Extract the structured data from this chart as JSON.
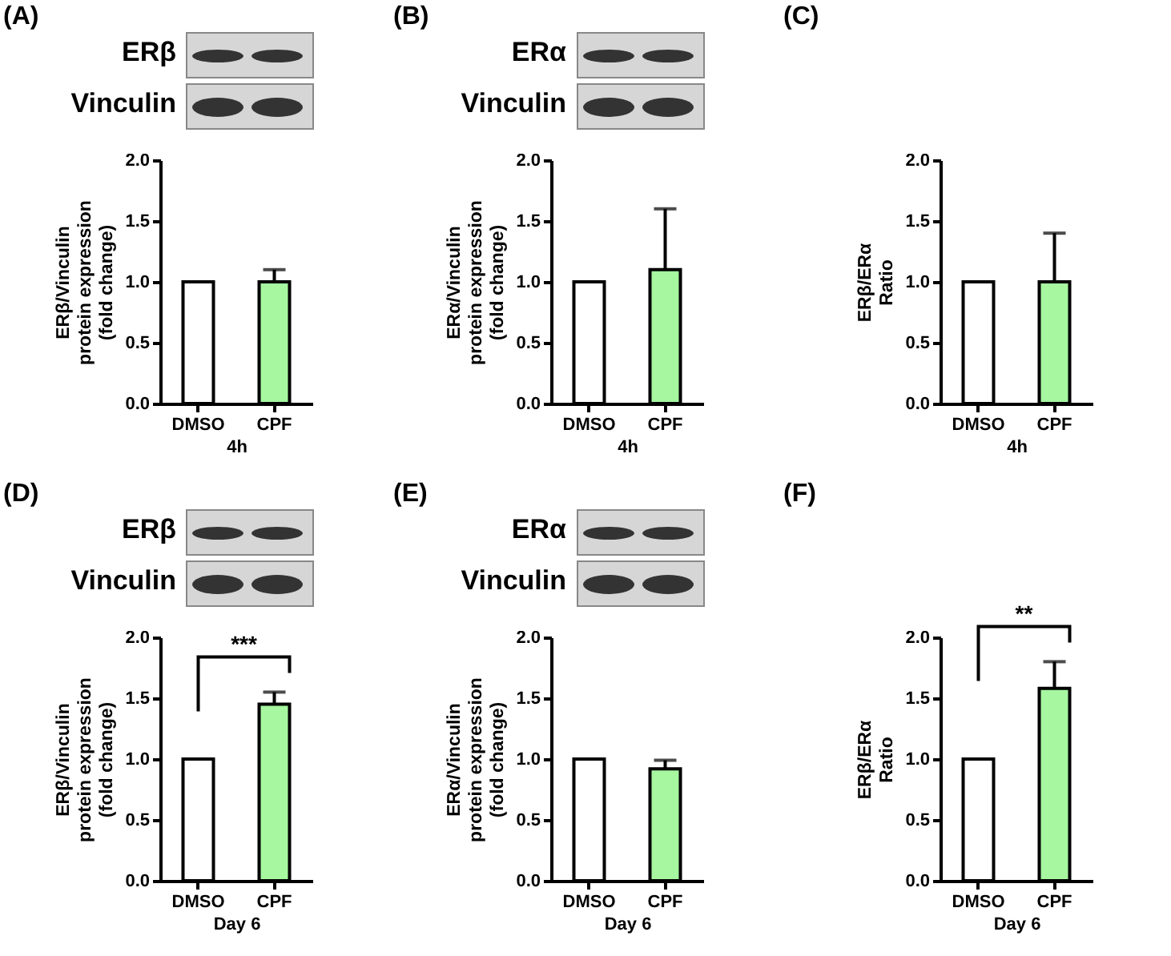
{
  "chart_data": [
    {
      "type": "bar",
      "title": "(A)",
      "annotations": [
        "ERβ",
        "Vinculin"
      ],
      "ylabel": "ERβ/Vinculin\nprotein expression\n(fold change)",
      "xlabel": "4h",
      "categories": [
        "DMSO",
        "CPF"
      ],
      "values": [
        1.0,
        1.0
      ],
      "colors": [
        "#ffffff",
        "#a6f7a0"
      ],
      "errors": [
        null,
        [
          1.0,
          1.1
        ]
      ],
      "ylim": [
        0,
        2
      ],
      "yticks": [
        {
          "value": 0,
          "label": "0.0"
        },
        {
          "value": 0.5,
          "label": "0.5"
        },
        {
          "value": 1,
          "label": "1.0"
        },
        {
          "value": 1.5,
          "label": "1.5"
        },
        {
          "value": 2,
          "label": "2.0"
        }
      ]
    },
    {
      "type": "bar",
      "title": "(B)",
      "annotations": [
        "ERα",
        "Vinculin"
      ],
      "ylabel": "ERα/Vinculin\nprotein expression\n(fold change)",
      "xlabel": "4h",
      "categories": [
        "DMSO",
        "CPF"
      ],
      "values": [
        1.0,
        1.1
      ],
      "colors": [
        "#ffffff",
        "#a6f7a0"
      ],
      "errors": [
        null,
        [
          1.1,
          1.6
        ]
      ],
      "ylim": [
        0,
        2
      ],
      "yticks": [
        {
          "value": 0,
          "label": "0.0"
        },
        {
          "value": 0.5,
          "label": "0.5"
        },
        {
          "value": 1,
          "label": "1.0"
        },
        {
          "value": 1.5,
          "label": "1.5"
        },
        {
          "value": 2,
          "label": "2.0"
        }
      ]
    },
    {
      "type": "bar",
      "title": "(C)",
      "ylabel": "ERβ/ERα\nRatio",
      "xlabel": "4h",
      "categories": [
        "DMSO",
        "CPF"
      ],
      "values": [
        1.0,
        1.0
      ],
      "colors": [
        "#ffffff",
        "#a6f7a0"
      ],
      "errors": [
        null,
        [
          1.0,
          1.4
        ]
      ],
      "ylim": [
        0,
        2
      ],
      "yticks": [
        {
          "value": 0,
          "label": "0.0"
        },
        {
          "value": 0.5,
          "label": "0.5"
        },
        {
          "value": 1,
          "label": "1.0"
        },
        {
          "value": 1.5,
          "label": "1.5"
        },
        {
          "value": 2,
          "label": "2.0"
        }
      ]
    },
    {
      "type": "bar",
      "title": "(D)",
      "annotations": [
        "ERβ",
        "Vinculin",
        "***"
      ],
      "ylabel": "ERβ/Vinculin\nprotein expression\n(fold change)",
      "xlabel": "Day 6",
      "categories": [
        "DMSO",
        "CPF"
      ],
      "values": [
        1.0,
        1.45
      ],
      "colors": [
        "#ffffff",
        "#a6f7a0"
      ],
      "errors": [
        null,
        [
          1.45,
          1.55
        ]
      ],
      "ylim": [
        0,
        2
      ],
      "yticks": [
        {
          "value": 0,
          "label": "0.0"
        },
        {
          "value": 0.5,
          "label": "0.5"
        },
        {
          "value": 1,
          "label": "1.0"
        },
        {
          "value": 1.5,
          "label": "1.5"
        },
        {
          "value": 2,
          "label": "2.0"
        }
      ]
    },
    {
      "type": "bar",
      "title": "(E)",
      "annotations": [
        "ERα",
        "Vinculin"
      ],
      "ylabel": "ERα/Vinculin\nprotein expression\n(fold change)",
      "xlabel": "Day 6",
      "categories": [
        "DMSO",
        "CPF"
      ],
      "values": [
        1.0,
        0.92
      ],
      "colors": [
        "#ffffff",
        "#a6f7a0"
      ],
      "errors": [
        null,
        [
          0.92,
          0.99
        ]
      ],
      "ylim": [
        0,
        2
      ],
      "yticks": [
        {
          "value": 0,
          "label": "0.0"
        },
        {
          "value": 0.5,
          "label": "0.5"
        },
        {
          "value": 1,
          "label": "1.0"
        },
        {
          "value": 1.5,
          "label": "1.5"
        },
        {
          "value": 2,
          "label": "2.0"
        }
      ]
    },
    {
      "type": "bar",
      "title": "(F)",
      "annotations": [
        "**"
      ],
      "ylabel": "ERβ/ERα\nRatio",
      "xlabel": "Day 6",
      "categories": [
        "DMSO",
        "CPF"
      ],
      "values": [
        1.0,
        1.58
      ],
      "colors": [
        "#ffffff",
        "#a6f7a0"
      ],
      "errors": [
        null,
        [
          1.58,
          1.8
        ]
      ],
      "ylim": [
        0,
        2
      ],
      "yticks": [
        {
          "value": 0,
          "label": "0.0"
        },
        {
          "value": 0.5,
          "label": "0.5"
        },
        {
          "value": 1,
          "label": "1.0"
        },
        {
          "value": 1.5,
          "label": "1.5"
        },
        {
          "value": 2,
          "label": "2.0"
        }
      ]
    }
  ]
}
